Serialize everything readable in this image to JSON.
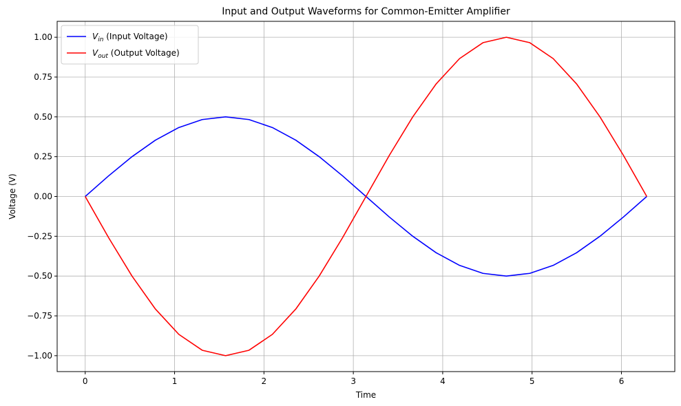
{
  "chart_data": {
    "type": "line",
    "title": "Input and Output Waveforms for Common-Emitter Amplifier",
    "xlabel": "Time",
    "ylabel": "Voltage (V)",
    "xlim": [
      -0.314,
      6.597
    ],
    "ylim": [
      -1.1,
      1.1
    ],
    "xticks": [
      0,
      1,
      2,
      3,
      4,
      5,
      6
    ],
    "xtick_labels": [
      "0",
      "1",
      "2",
      "3",
      "4",
      "5",
      "6"
    ],
    "yticks": [
      -1.0,
      -0.75,
      -0.5,
      -0.25,
      0.0,
      0.25,
      0.5,
      0.75,
      1.0
    ],
    "ytick_labels": [
      "−1.00",
      "−0.75",
      "−0.50",
      "−0.25",
      "0.00",
      "0.25",
      "0.50",
      "0.75",
      "1.00"
    ],
    "grid": true,
    "legend_position": "top-left",
    "x": [
      0.0,
      0.2618,
      0.5236,
      0.7854,
      1.0472,
      1.309,
      1.5708,
      1.8326,
      2.0944,
      2.3562,
      2.618,
      2.8798,
      3.1416,
      3.4034,
      3.6652,
      3.927,
      4.1888,
      4.4506,
      4.7124,
      4.9742,
      5.236,
      5.4978,
      5.7596,
      6.0214,
      6.2832
    ],
    "series": [
      {
        "name": "V_in (Input Voltage)",
        "label_main": "V",
        "label_sub": "in",
        "label_rest": " (Input Voltage)",
        "color": "#0000ff",
        "values": [
          0.0,
          0.1294,
          0.25,
          0.3536,
          0.433,
          0.483,
          0.5,
          0.483,
          0.433,
          0.3536,
          0.25,
          0.1294,
          0.0,
          -0.1294,
          -0.25,
          -0.3536,
          -0.433,
          -0.483,
          -0.5,
          -0.483,
          -0.433,
          -0.3536,
          -0.25,
          -0.1294,
          0.0
        ]
      },
      {
        "name": "V_out (Output Voltage)",
        "label_main": "V",
        "label_sub": "out",
        "label_rest": " (Output Voltage)",
        "color": "#ff0000",
        "values": [
          0.0,
          -0.2588,
          -0.5,
          -0.7071,
          -0.866,
          -0.9659,
          -1.0,
          -0.9659,
          -0.866,
          -0.7071,
          -0.5,
          -0.2588,
          0.0,
          0.2588,
          0.5,
          0.7071,
          0.866,
          0.9659,
          1.0,
          0.9659,
          0.866,
          0.7071,
          0.5,
          0.2588,
          0.0
        ]
      }
    ]
  }
}
